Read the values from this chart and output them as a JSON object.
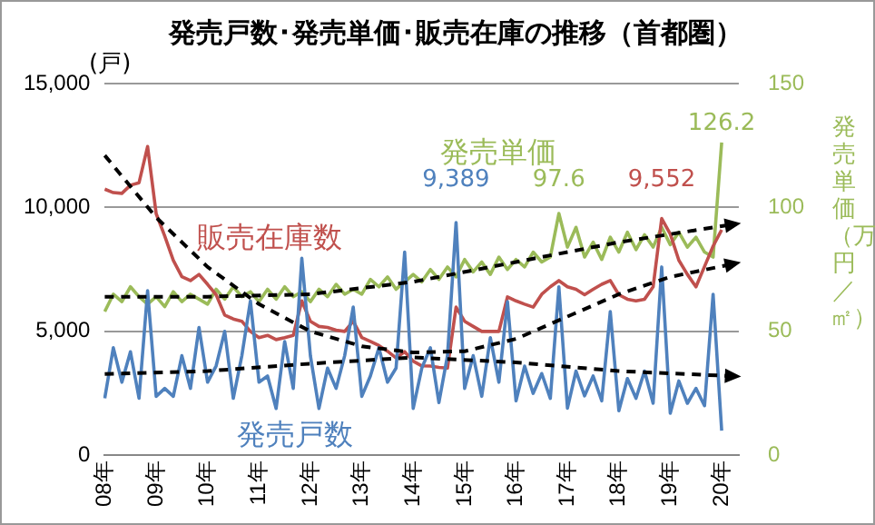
{
  "chart_data": {
    "type": "line",
    "title": "発売戸数･発売単価･販売在庫の推移（首都圏）",
    "ylabel": "(戸)",
    "y2label": "発売単価（万円／㎡）",
    "categories": [
      "08年",
      null,
      null,
      null,
      null,
      null,
      "09年",
      null,
      null,
      null,
      null,
      null,
      "10年",
      null,
      null,
      null,
      null,
      null,
      "11年",
      null,
      null,
      null,
      null,
      null,
      "12年",
      null,
      null,
      null,
      null,
      null,
      "13年",
      null,
      null,
      null,
      null,
      null,
      "14年",
      null,
      null,
      null,
      null,
      null,
      "15年",
      null,
      null,
      null,
      null,
      null,
      "16年",
      null,
      null,
      null,
      null,
      null,
      "17年",
      null,
      null,
      null,
      null,
      null,
      "18年",
      null,
      null,
      null,
      null,
      null,
      "19年",
      null,
      null,
      null,
      null,
      null,
      "20年",
      null,
      null
    ],
    "ylim": [
      0,
      15000
    ],
    "yticks": [
      {
        "value": 0,
        "label": "0"
      },
      {
        "value": 5000,
        "label": "5,000"
      },
      {
        "value": 10000,
        "label": "10,000"
      },
      {
        "value": 15000,
        "label": "15,000"
      }
    ],
    "y2lim": [
      0,
      150
    ],
    "y2ticks": [
      0,
      50,
      100,
      150
    ],
    "grid": "y",
    "legend": false,
    "marker": "none",
    "series": [
      {
        "name": "発売戸数",
        "color": "#4f81bd",
        "values": [
          2300,
          4340,
          2950,
          4180,
          2300,
          6640,
          2380,
          2700,
          2380,
          4020,
          2700,
          5160,
          2950,
          3610,
          5000,
          2300,
          4020,
          6230,
          2950,
          3200,
          1890,
          4590,
          2700,
          7950,
          4020,
          1890,
          3520,
          2700,
          4020,
          5980,
          2380,
          3200,
          4340,
          2950,
          3520,
          8200,
          1890,
          3520,
          4340,
          2130,
          4020,
          9389,
          2700,
          4020,
          2380,
          4750,
          2950,
          6200,
          2200,
          3600,
          2500,
          3300,
          2300,
          6800,
          1900,
          3400,
          2400,
          3200,
          2200,
          5800,
          1800,
          3100,
          2300,
          3400,
          2100,
          7600,
          1700,
          3000,
          2100,
          2700,
          2000,
          6500,
          1000,
          null,
          null
        ],
        "value_labels": [
          null,
          null,
          null,
          null,
          null,
          null,
          null,
          null,
          null,
          null,
          null,
          null,
          null,
          null,
          null,
          null,
          null,
          null,
          null,
          null,
          null,
          null,
          null,
          null,
          null,
          null,
          null,
          null,
          null,
          null,
          null,
          null,
          null,
          null,
          null,
          null,
          null,
          null,
          null,
          null,
          null,
          "9,389",
          null,
          null,
          null,
          null,
          null,
          null,
          null,
          null,
          null,
          null,
          null,
          null,
          null,
          null,
          null,
          null,
          null,
          null,
          null,
          null,
          null,
          null,
          null,
          null,
          null,
          null,
          null,
          null,
          null,
          null,
          null,
          null,
          null
        ]
      },
      {
        "name": "販売在庫数",
        "color": "#c0504d",
        "values": [
          10740,
          10600,
          10570,
          10900,
          11000,
          12460,
          9750,
          8850,
          7870,
          7210,
          7050,
          7300,
          6900,
          6480,
          5660,
          5500,
          5410,
          5000,
          4750,
          4840,
          4670,
          4750,
          4840,
          6230,
          5410,
          5200,
          5160,
          5050,
          5000,
          5410,
          4750,
          4600,
          4430,
          4200,
          3930,
          4180,
          3800,
          3610,
          3600,
          3550,
          3520,
          5980,
          5410,
          5200,
          5000,
          5000,
          5000,
          6390,
          6230,
          6100,
          5980,
          6500,
          6800,
          7050,
          6800,
          6700,
          6480,
          6700,
          6900,
          7050,
          6480,
          6300,
          6230,
          6300,
          6800,
          9552,
          8930,
          7870,
          7300,
          6800,
          7620,
          8440,
          9100,
          null,
          null
        ],
        "value_labels": [
          null,
          null,
          null,
          null,
          null,
          null,
          null,
          null,
          null,
          null,
          null,
          null,
          null,
          null,
          null,
          null,
          null,
          null,
          null,
          null,
          null,
          null,
          null,
          null,
          null,
          null,
          null,
          null,
          null,
          null,
          null,
          null,
          null,
          null,
          null,
          null,
          null,
          null,
          null,
          null,
          null,
          null,
          null,
          null,
          null,
          null,
          null,
          null,
          null,
          null,
          null,
          null,
          null,
          null,
          null,
          null,
          null,
          null,
          null,
          null,
          null,
          null,
          null,
          null,
          null,
          "9,552",
          null,
          null,
          null,
          null,
          null,
          null,
          null,
          null,
          null
        ]
      },
      {
        "name": "発売単価",
        "color": "#9bbb59",
        "axis": "y2",
        "values": [
          58,
          65,
          62,
          68,
          64,
          61,
          64,
          60,
          66,
          62,
          65,
          63,
          61,
          67,
          63,
          68,
          64,
          66,
          62,
          67,
          63,
          68,
          64,
          66,
          62,
          67,
          64,
          69,
          65,
          67,
          65,
          71,
          68,
          72,
          67,
          70,
          73,
          70,
          75,
          71,
          76,
          72,
          79,
          74,
          78,
          73,
          80,
          75,
          79,
          76,
          82,
          78,
          80,
          97.6,
          84,
          92,
          80,
          86,
          79,
          88,
          82,
          90,
          83,
          89,
          84,
          92,
          85,
          90,
          84,
          88,
          82,
          80,
          126.2,
          null,
          null
        ],
        "value_labels": [
          null,
          null,
          null,
          null,
          null,
          null,
          null,
          null,
          null,
          null,
          null,
          null,
          null,
          null,
          null,
          null,
          null,
          null,
          null,
          null,
          null,
          null,
          null,
          null,
          null,
          null,
          null,
          null,
          null,
          null,
          null,
          null,
          null,
          null,
          null,
          null,
          null,
          null,
          null,
          null,
          null,
          null,
          null,
          null,
          null,
          null,
          null,
          null,
          null,
          null,
          null,
          null,
          null,
          "97.6",
          null,
          null,
          null,
          null,
          null,
          null,
          null,
          null,
          null,
          null,
          null,
          null,
          null,
          null,
          null,
          null,
          null,
          null,
          "126.2",
          null,
          null
        ]
      },
      {
        "color": "#000000",
        "line_style": "dashed",
        "values": [
          12100,
          null,
          null,
          null,
          null,
          null,
          9600,
          null,
          null,
          null,
          null,
          null,
          7600,
          null,
          null,
          null,
          null,
          null,
          6100,
          null,
          null,
          null,
          null,
          null,
          5000,
          null,
          null,
          null,
          null,
          null,
          4400,
          null,
          null,
          null,
          null,
          null,
          4150,
          null,
          null,
          null,
          null,
          null,
          4200,
          null,
          null,
          null,
          null,
          null,
          4700,
          null,
          null,
          null,
          null,
          null,
          5600,
          null,
          null,
          null,
          null,
          null,
          6500,
          null,
          null,
          null,
          null,
          null,
          7200,
          null,
          null,
          null,
          null,
          null,
          null,
          7700,
          null
        ]
      },
      {
        "color": "#000000",
        "line_style": "dashed",
        "values": [
          3280,
          null,
          null,
          null,
          null,
          null,
          null,
          null,
          null,
          null,
          null,
          null,
          3400,
          null,
          null,
          null,
          null,
          null,
          null,
          null,
          null,
          null,
          null,
          null,
          3700,
          null,
          null,
          null,
          null,
          null,
          null,
          null,
          null,
          null,
          null,
          null,
          3950,
          null,
          null,
          null,
          null,
          null,
          null,
          null,
          null,
          null,
          null,
          null,
          3750,
          null,
          null,
          null,
          null,
          null,
          null,
          null,
          null,
          null,
          null,
          null,
          3400,
          null,
          null,
          null,
          null,
          null,
          null,
          null,
          null,
          null,
          null,
          null,
          null,
          3200,
          null
        ]
      },
      {
        "color": "#000000",
        "line_style": "dashed",
        "axis": "y2",
        "values": [
          64,
          null,
          null,
          null,
          null,
          null,
          null,
          null,
          null,
          null,
          null,
          null,
          64,
          null,
          null,
          null,
          null,
          null,
          null,
          null,
          null,
          null,
          null,
          null,
          65,
          null,
          null,
          null,
          null,
          null,
          null,
          null,
          null,
          null,
          null,
          null,
          70,
          null,
          null,
          null,
          null,
          null,
          null,
          null,
          null,
          null,
          null,
          null,
          78,
          null,
          null,
          null,
          null,
          null,
          null,
          null,
          null,
          null,
          null,
          null,
          86,
          null,
          null,
          null,
          null,
          null,
          null,
          null,
          null,
          null,
          null,
          null,
          null,
          93,
          null
        ]
      }
    ]
  }
}
